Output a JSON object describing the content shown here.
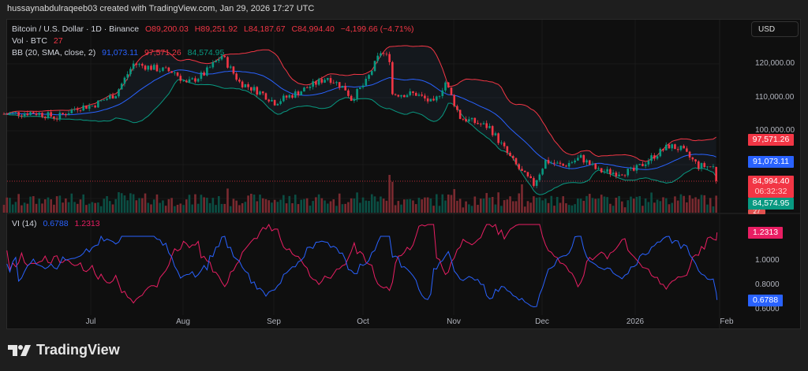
{
  "credit": "hussaynabdulraqeeb03 created with TradingView.com, Jan 29, 2026 17:27 UTC",
  "legend": {
    "symbol": "Bitcoin / U.S. Dollar · 1D · Binance",
    "open": "O89,200.03",
    "high": "H89,251.92",
    "low": "L84,187.67",
    "close": "C84,994.40",
    "change": "−4,199.66 (−4.71%)",
    "vol_label": "Vol · BTC",
    "vol_value": "27",
    "bb_label": "BB (20, SMA, close, 2)",
    "bb_basis": "91,073.11",
    "bb_upper": "97,571.26",
    "bb_lower": "84,574.95",
    "vi_label": "VI (14)",
    "vi_plus": "0.6788",
    "vi_minus": "1.2313"
  },
  "currency_button": "USD",
  "price_axis": [
    "120,000.00",
    "110,000.00",
    "100,000.00"
  ],
  "vi_axis": [
    "1.0000",
    "0.8000",
    "0.6000"
  ],
  "tags": {
    "upper": "97,571.26",
    "basis": "91,073.11",
    "last": "84,994.40",
    "countdown": "06:32:32",
    "lower": "84,574.95",
    "vol": "27",
    "vi_minus": "1.2313",
    "vi_plus": "0.6788"
  },
  "time_axis": [
    "Jul",
    "Aug",
    "Sep",
    "Oct",
    "Nov",
    "Dec",
    "2026",
    "Feb"
  ],
  "brand": "TradingView",
  "colors": {
    "up": "#089981",
    "down": "#f23645",
    "basis": "#2962ff",
    "upper": "#f23645",
    "lower": "#089981",
    "vi_plus": "#2962ff",
    "vi_minus": "#e91e63"
  },
  "chart_data": {
    "type": "candlestick",
    "title": "Bitcoin / U.S. Dollar · 1D · Binance",
    "ylabel": "USD",
    "ylim": [
      80000,
      126000
    ],
    "x_start": "Jun 1 2025",
    "x_end": "Jan 29 2026",
    "close_anchors_day_price": [
      [
        0,
        105000
      ],
      [
        10,
        105500
      ],
      [
        18,
        104000
      ],
      [
        25,
        107000
      ],
      [
        30,
        107500
      ],
      [
        38,
        111000
      ],
      [
        44,
        120000
      ],
      [
        52,
        118500
      ],
      [
        58,
        117500
      ],
      [
        62,
        114000
      ],
      [
        68,
        117000
      ],
      [
        74,
        122500
      ],
      [
        80,
        114500
      ],
      [
        88,
        111000
      ],
      [
        92,
        108500
      ],
      [
        100,
        111500
      ],
      [
        110,
        116000
      ],
      [
        116,
        112500
      ],
      [
        118,
        109500
      ],
      [
        123,
        114500
      ],
      [
        128,
        123500
      ],
      [
        131,
        121500
      ],
      [
        132,
        111000
      ],
      [
        140,
        111000
      ],
      [
        146,
        108000
      ],
      [
        150,
        114500
      ],
      [
        155,
        104000
      ],
      [
        165,
        101000
      ],
      [
        172,
        92000
      ],
      [
        176,
        87500
      ],
      [
        180,
        84000
      ],
      [
        184,
        91000
      ],
      [
        190,
        89500
      ],
      [
        196,
        92000
      ],
      [
        202,
        88000
      ],
      [
        208,
        87500
      ],
      [
        214,
        88000
      ],
      [
        220,
        92000
      ],
      [
        226,
        95500
      ],
      [
        230,
        94500
      ],
      [
        236,
        89500
      ],
      [
        241,
        89200
      ],
      [
        242,
        84994.4
      ]
    ],
    "last_candle": {
      "open": 89200.03,
      "high": 89251.92,
      "low": 84187.67,
      "close": 84994.4,
      "change": -4199.66,
      "change_pct": -4.71
    },
    "indicators": {
      "bollinger": {
        "period": 20,
        "mult": 2,
        "basis": 91073.11,
        "upper": 97571.26,
        "lower": 84574.95
      },
      "volume_last": 27,
      "vortex": {
        "period": 14,
        "vi_plus": 0.6788,
        "vi_minus": 1.2313,
        "ylim": [
          0.6,
          1.35
        ]
      }
    }
  }
}
